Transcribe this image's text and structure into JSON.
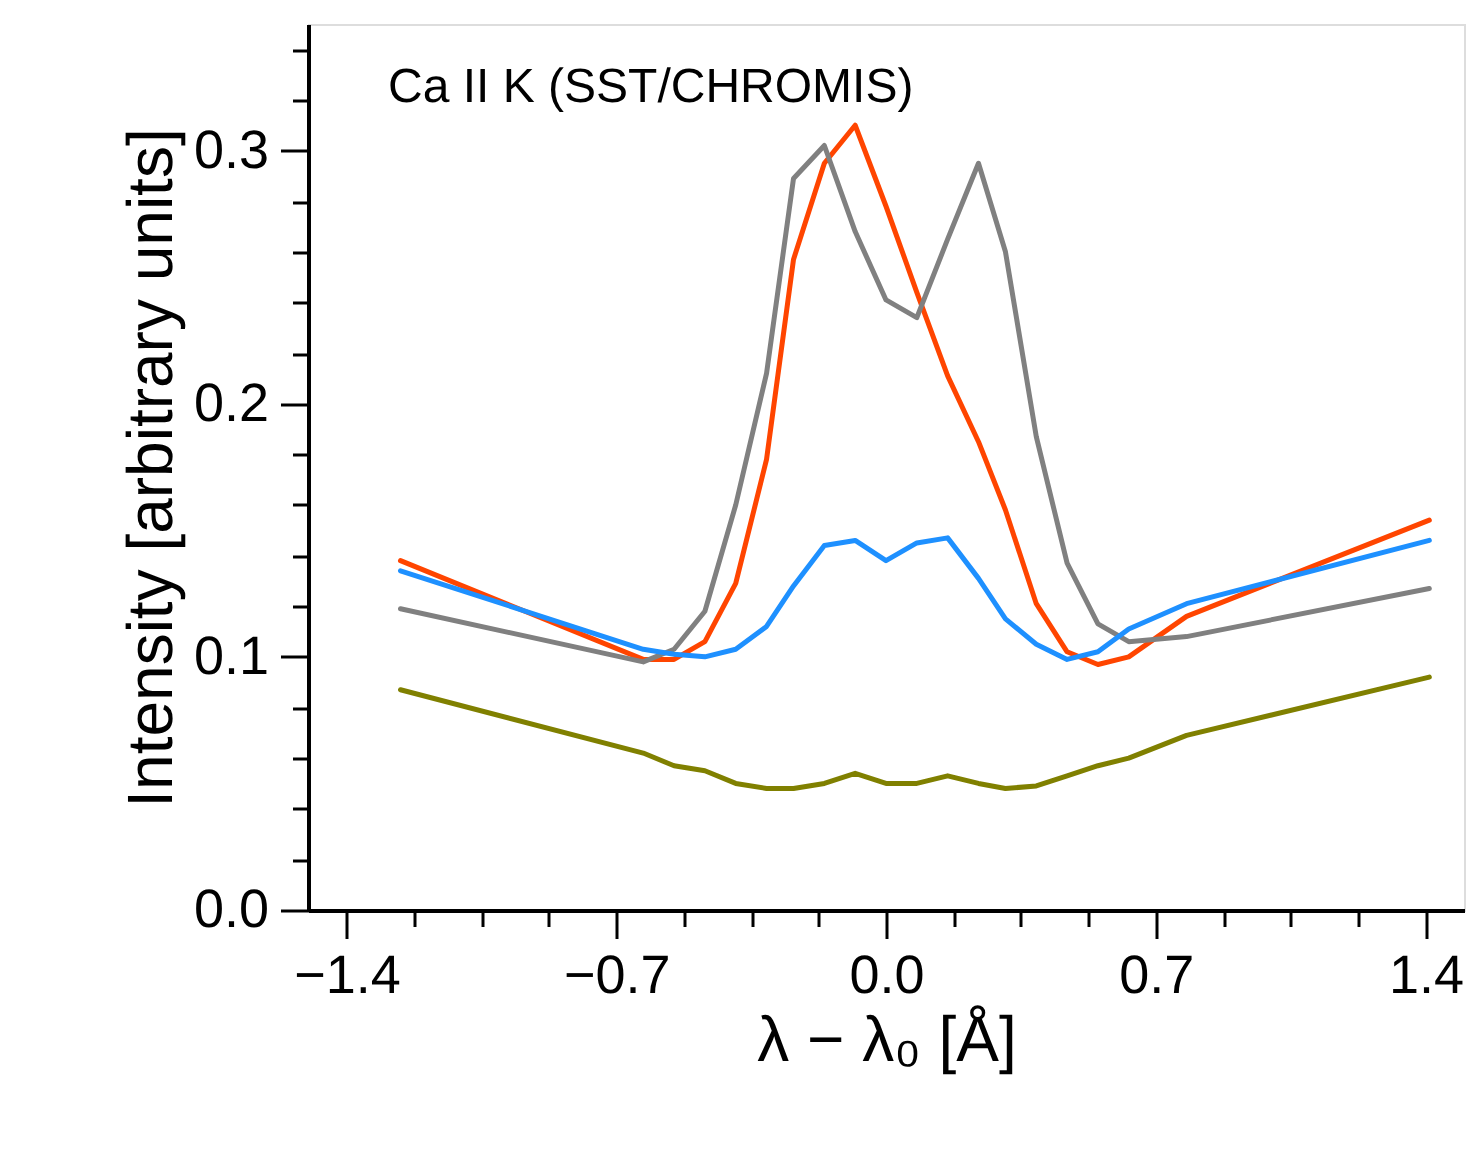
{
  "chart_data": {
    "type": "line",
    "annotations": [
      "Ca II K (SST/CHROMIS)"
    ],
    "xlabel": "λ − λ₀ [Å]",
    "ylabel": "Intensity [arbitrary units]",
    "x": [
      -1.26,
      -0.63,
      -0.55,
      -0.47,
      -0.39,
      -0.31,
      -0.24,
      -0.16,
      -0.08,
      0.0,
      0.08,
      0.16,
      0.24,
      0.31,
      0.39,
      0.47,
      0.55,
      0.63,
      0.78,
      1.41
    ],
    "series": [
      {
        "color": "#ff4500",
        "values": [
          0.138,
          0.099,
          0.099,
          0.106,
          0.129,
          0.178,
          0.257,
          0.295,
          0.31,
          0.278,
          0.244,
          0.211,
          0.185,
          0.158,
          0.121,
          0.102,
          0.097,
          0.1,
          0.116,
          0.154
        ]
      },
      {
        "color": "#808080",
        "values": [
          0.119,
          0.098,
          0.103,
          0.118,
          0.16,
          0.212,
          0.289,
          0.302,
          0.268,
          0.241,
          0.234,
          0.265,
          0.295,
          0.26,
          0.187,
          0.137,
          0.113,
          0.106,
          0.108,
          0.127
        ]
      },
      {
        "color": "#1e90ff",
        "values": [
          0.134,
          0.103,
          0.101,
          0.1,
          0.103,
          0.112,
          0.128,
          0.144,
          0.146,
          0.138,
          0.145,
          0.147,
          0.131,
          0.115,
          0.105,
          0.099,
          0.102,
          0.111,
          0.121,
          0.146
        ]
      },
      {
        "color": "#808000",
        "values": [
          0.087,
          0.062,
          0.057,
          0.055,
          0.05,
          0.048,
          0.048,
          0.05,
          0.054,
          0.05,
          0.05,
          0.053,
          0.05,
          0.048,
          0.049,
          0.053,
          0.057,
          0.06,
          0.069,
          0.092
        ]
      }
    ],
    "xlim": [
      -1.5,
      1.5
    ],
    "xticks": [
      {
        "value": -1.4,
        "label": "−1.4"
      },
      {
        "value": -1.225,
        "label": null
      },
      {
        "value": -1.05,
        "label": null
      },
      {
        "value": -0.875,
        "label": null
      },
      {
        "value": -0.7,
        "label": "−0.7"
      },
      {
        "value": -0.525,
        "label": null
      },
      {
        "value": -0.35,
        "label": null
      },
      {
        "value": -0.175,
        "label": null
      },
      {
        "value": 0.0,
        "label": "0.0"
      },
      {
        "value": 0.175,
        "label": null
      },
      {
        "value": 0.35,
        "label": null
      },
      {
        "value": 0.525,
        "label": null
      },
      {
        "value": 0.7,
        "label": "0.7"
      },
      {
        "value": 0.875,
        "label": null
      },
      {
        "value": 1.05,
        "label": null
      },
      {
        "value": 1.225,
        "label": null
      },
      {
        "value": 1.4,
        "label": "1.4"
      }
    ],
    "ylim": [
      0.0,
      0.35
    ],
    "yticks": [
      {
        "value": 0.0,
        "label": "0.0"
      },
      {
        "value": 0.02,
        "label": null
      },
      {
        "value": 0.04,
        "label": null
      },
      {
        "value": 0.06,
        "label": null
      },
      {
        "value": 0.08,
        "label": null
      },
      {
        "value": 0.1,
        "label": "0.1"
      },
      {
        "value": 0.12,
        "label": null
      },
      {
        "value": 0.14,
        "label": null
      },
      {
        "value": 0.16,
        "label": null
      },
      {
        "value": 0.18,
        "label": null
      },
      {
        "value": 0.2,
        "label": "0.2"
      },
      {
        "value": 0.22,
        "label": null
      },
      {
        "value": 0.24,
        "label": null
      },
      {
        "value": 0.26,
        "label": null
      },
      {
        "value": 0.28,
        "label": null
      },
      {
        "value": 0.3,
        "label": "0.3"
      },
      {
        "value": 0.32,
        "label": null
      },
      {
        "value": 0.34,
        "label": null
      }
    ],
    "grid": false,
    "marker": "none",
    "line_style": "solid"
  }
}
